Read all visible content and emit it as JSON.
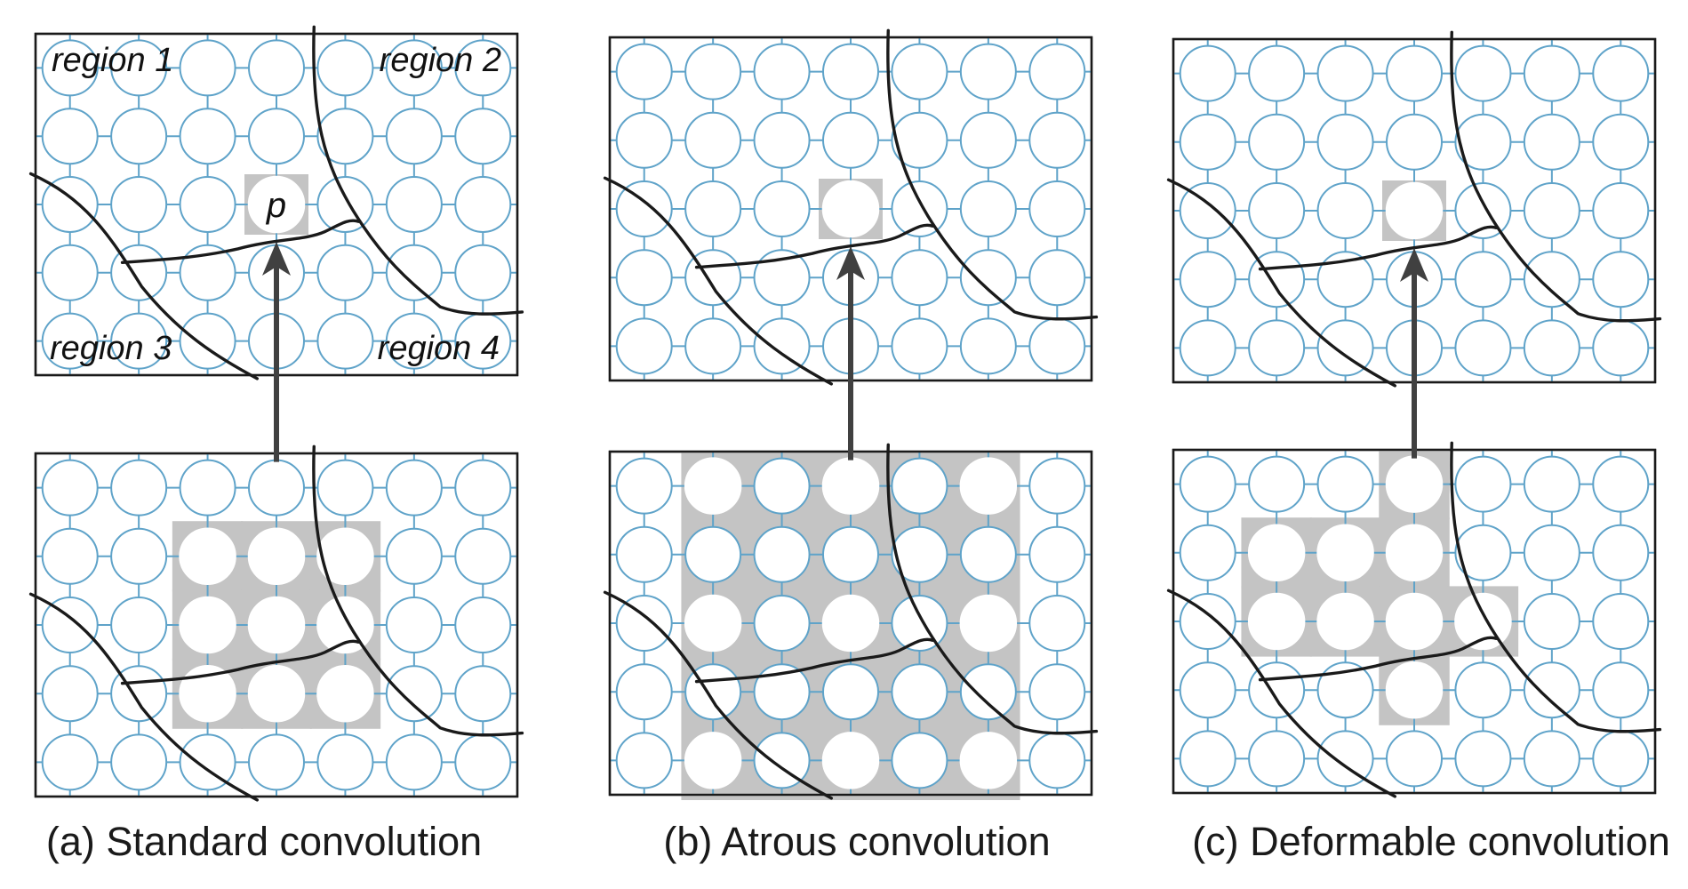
{
  "panels": [
    {
      "id": "a",
      "caption": "(a) Standard convolution",
      "output_region_labels": [
        "region 1",
        "region 2",
        "region 3",
        "region 4"
      ],
      "output_point_label": "p",
      "sampled_nodes": [
        [
          2,
          1
        ],
        [
          3,
          1
        ],
        [
          4,
          1
        ],
        [
          2,
          2
        ],
        [
          3,
          2
        ],
        [
          4,
          2
        ],
        [
          2,
          3
        ],
        [
          3,
          3
        ],
        [
          4,
          3
        ]
      ]
    },
    {
      "id": "b",
      "caption": "(b) Atrous convolution",
      "sampled_nodes": [
        [
          1,
          0
        ],
        [
          3,
          0
        ],
        [
          5,
          0
        ],
        [
          1,
          2
        ],
        [
          3,
          2
        ],
        [
          5,
          2
        ],
        [
          1,
          4
        ],
        [
          3,
          4
        ],
        [
          5,
          4
        ]
      ]
    },
    {
      "id": "c",
      "caption": "(c) Deformable convolution",
      "sampled_nodes": [
        [
          3,
          0
        ],
        [
          1,
          1
        ],
        [
          2,
          1
        ],
        [
          3,
          1
        ],
        [
          1,
          2
        ],
        [
          2,
          2
        ],
        [
          3,
          2
        ],
        [
          4,
          2
        ],
        [
          3,
          3
        ]
      ]
    }
  ],
  "colors": {
    "output_point": "#a5305f",
    "sampled_standard": "#cd8e48",
    "sampled_atrous": "#b98543",
    "sampled_deformable": "#a57a47",
    "grid": "#5fa3c9",
    "highlight": "#c4c4c4"
  }
}
